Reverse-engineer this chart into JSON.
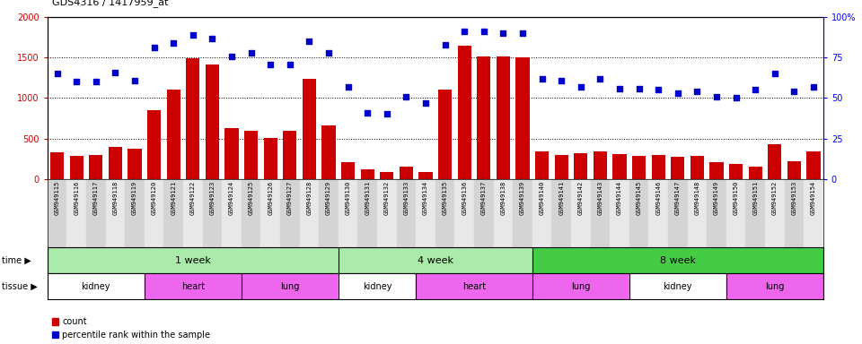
{
  "title": "GDS4316 / 1417959_at",
  "samples": [
    "GSM949115",
    "GSM949116",
    "GSM949117",
    "GSM949118",
    "GSM949119",
    "GSM949120",
    "GSM949121",
    "GSM949122",
    "GSM949123",
    "GSM949124",
    "GSM949125",
    "GSM949126",
    "GSM949127",
    "GSM949128",
    "GSM949129",
    "GSM949130",
    "GSM949131",
    "GSM949132",
    "GSM949133",
    "GSM949134",
    "GSM949135",
    "GSM949136",
    "GSM949137",
    "GSM949138",
    "GSM949139",
    "GSM949140",
    "GSM949141",
    "GSM949142",
    "GSM949143",
    "GSM949144",
    "GSM949145",
    "GSM949146",
    "GSM949147",
    "GSM949148",
    "GSM949149",
    "GSM949150",
    "GSM949151",
    "GSM949152",
    "GSM949153",
    "GSM949154"
  ],
  "counts": [
    330,
    290,
    300,
    390,
    370,
    855,
    1100,
    1490,
    1420,
    630,
    590,
    510,
    600,
    1240,
    660,
    210,
    115,
    85,
    155,
    80,
    1100,
    1650,
    1520,
    1520,
    1500,
    335,
    300,
    320,
    335,
    310,
    285,
    300,
    270,
    290,
    210,
    190,
    155,
    430,
    220,
    340
  ],
  "percentile": [
    65,
    60,
    60,
    66,
    61,
    81,
    84,
    89,
    87,
    76,
    78,
    71,
    71,
    85,
    78,
    57,
    41,
    40,
    51,
    47,
    83,
    91,
    91,
    90,
    90,
    62,
    61,
    57,
    62,
    56,
    56,
    55,
    53,
    54,
    51,
    50,
    55,
    65,
    54,
    57
  ],
  "bar_color": "#cc0000",
  "dot_color": "#0000cc",
  "ylim_left": [
    0,
    2000
  ],
  "ylim_right": [
    0,
    100
  ],
  "yticks_left": [
    0,
    500,
    1000,
    1500,
    2000
  ],
  "yticks_right": [
    0,
    25,
    50,
    75,
    100
  ],
  "yticklabels_right": [
    "0",
    "25",
    "50",
    "75",
    "100%"
  ],
  "legend_count_label": "count",
  "legend_pct_label": "percentile rank within the sample",
  "time_data": [
    {
      "label": "1 week",
      "start": 0,
      "end": 15,
      "color": "#aaeaaa"
    },
    {
      "label": "4 week",
      "start": 15,
      "end": 25,
      "color": "#aaeaaa"
    },
    {
      "label": "8 week",
      "start": 25,
      "end": 40,
      "color": "#44cc44"
    }
  ],
  "tissue_data": [
    {
      "label": "kidney",
      "start": 0,
      "end": 5,
      "color": "#ffffff"
    },
    {
      "label": "heart",
      "start": 5,
      "end": 10,
      "color": "#ee66ee"
    },
    {
      "label": "lung",
      "start": 10,
      "end": 15,
      "color": "#ee66ee"
    },
    {
      "label": "kidney",
      "start": 15,
      "end": 19,
      "color": "#ffffff"
    },
    {
      "label": "heart",
      "start": 19,
      "end": 25,
      "color": "#ee66ee"
    },
    {
      "label": "lung",
      "start": 25,
      "end": 30,
      "color": "#ee66ee"
    },
    {
      "label": "kidney",
      "start": 30,
      "end": 35,
      "color": "#ffffff"
    },
    {
      "label": "lung",
      "start": 35,
      "end": 40,
      "color": "#ee66ee"
    }
  ]
}
